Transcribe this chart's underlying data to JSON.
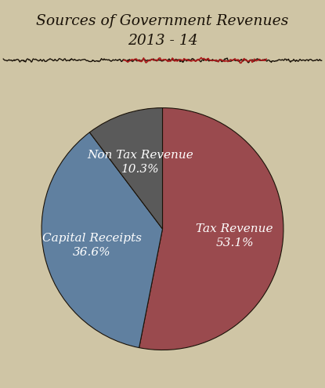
{
  "title_line1": "Sources of Government Revenues",
  "title_line2": "2013 - 14",
  "slices": [
    {
      "label": "Tax Revenue",
      "pct": 53.1,
      "color": "#9a4a4e"
    },
    {
      "label": "Capital Receipts",
      "pct": 36.6,
      "color": "#6080a0"
    },
    {
      "label": "Non Tax Revenue",
      "pct": 10.3,
      "color": "#5a5a5a"
    }
  ],
  "background_color": "#cfc5a5",
  "text_color": "#ffffff",
  "title_color": "#1a1208",
  "startangle": 90,
  "figsize": [
    4.15,
    4.95
  ],
  "dpi": 100,
  "label_offsets": {
    "Tax Revenue": [
      0.3,
      -0.05
    ],
    "Capital Receipts": [
      -0.32,
      0.1
    ],
    "Non Tax Revenue": [
      -0.15,
      -0.32
    ]
  }
}
